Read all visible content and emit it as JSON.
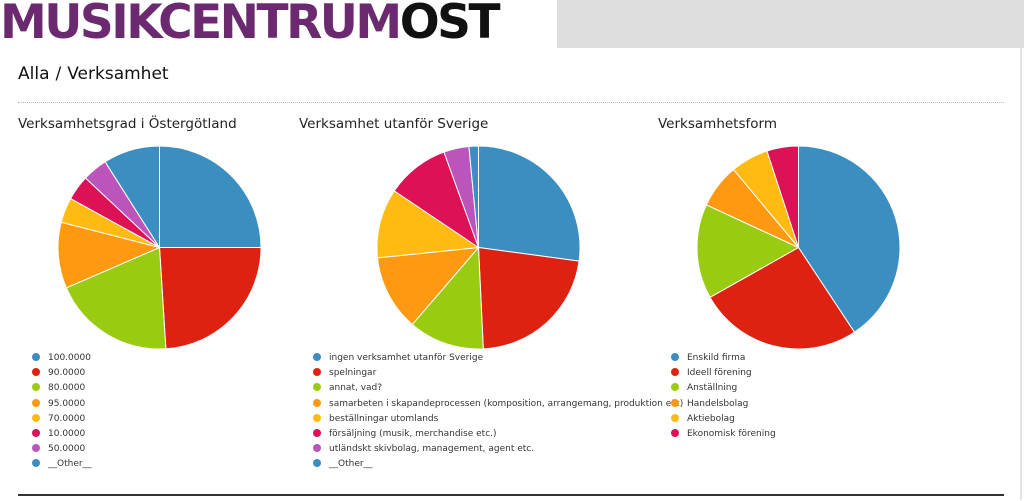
{
  "header": {
    "logo_part1": "MUSIKCENTRUM",
    "logo_part2": "ÖST"
  },
  "breadcrumb": {
    "root": "Alla",
    "separator": "/",
    "current": "Verksamhet"
  },
  "colors": [
    "#3a8fc0",
    "#dd2211",
    "#99cc11",
    "#ff9911",
    "#ffbb11",
    "#dd1155",
    "#bb55bb",
    "#3a8fc0"
  ],
  "chart_data": [
    {
      "type": "pie",
      "title": "Verksamhetsgrad i Östergötland",
      "labels": [
        "100.0000",
        "90.0000",
        "80.0000",
        "95.0000",
        "70.0000",
        "10.0000",
        "50.0000",
        "__Other__"
      ],
      "values": [
        25,
        24,
        19.5,
        10.5,
        4,
        4,
        4,
        9
      ],
      "colors": [
        "#3a8fc0",
        "#dd2211",
        "#99cc11",
        "#ff9911",
        "#ffbb11",
        "#dd1155",
        "#bb55bb",
        "#3a8fc0"
      ]
    },
    {
      "type": "pie",
      "title": "Verksamhet utanför Sverige",
      "labels": [
        "ingen verksamhet utanför Sverige",
        "spelningar",
        "annat, vad?",
        "samarbeten i skapandeprocessen (komposition, arrangemang, produktion etc)",
        "beställningar utomlands",
        "försäljning (musik, merchandise etc.)",
        "utländskt skivbolag, management, agent etc.",
        "__Other__"
      ],
      "values": [
        27,
        22,
        12,
        12,
        11,
        10,
        4,
        1.5
      ],
      "colors": [
        "#3a8fc0",
        "#dd2211",
        "#99cc11",
        "#ff9911",
        "#ffbb11",
        "#dd1155",
        "#bb55bb",
        "#3a8fc0"
      ]
    },
    {
      "type": "pie",
      "title": "Verksamhetsform",
      "labels": [
        "Enskild firma",
        "Ideell förening",
        "Anställning",
        "Handelsbolag",
        "Aktiebolag",
        "Ekonomisk förening"
      ],
      "values": [
        40.5,
        26,
        15,
        7,
        6,
        5
      ],
      "colors": [
        "#3a8fc0",
        "#dd2211",
        "#99cc11",
        "#ff9911",
        "#ffbb11",
        "#dd1155"
      ]
    }
  ]
}
